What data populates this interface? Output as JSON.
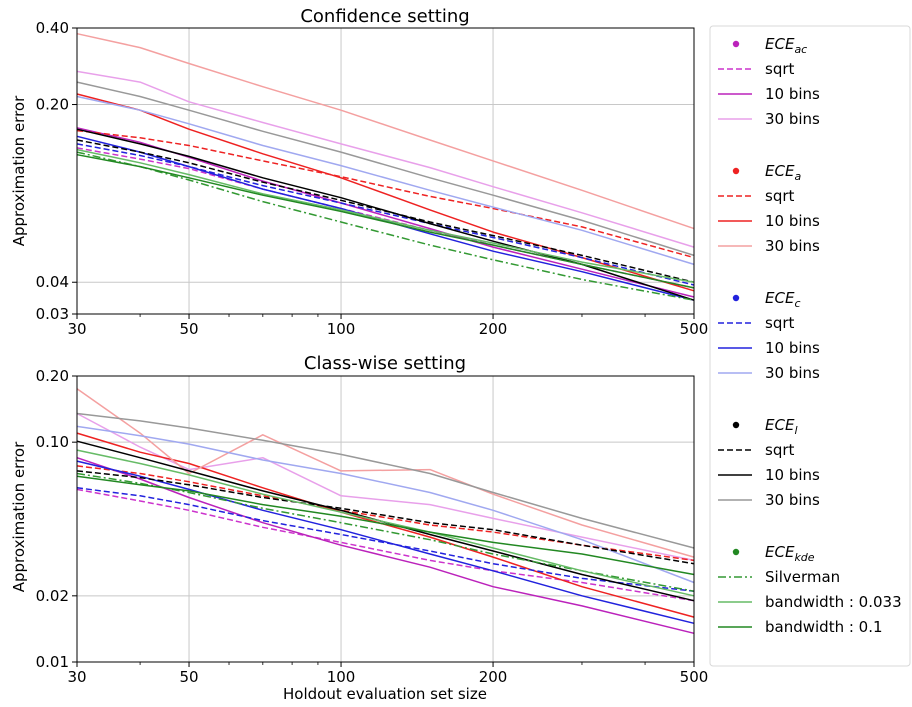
{
  "chart_data": [
    {
      "type": "line",
      "title": "Confidence setting",
      "xlabel": "",
      "ylabel": "Approximation error",
      "xscale": "log",
      "yscale": "log",
      "xlim": [
        30,
        500
      ],
      "ylim": [
        0.03,
        0.4
      ],
      "xticks": [
        30,
        50,
        100,
        200,
        500
      ],
      "xtick_labels": [
        "30",
        "50",
        "100",
        "200",
        "500"
      ],
      "yticks": [
        0.03,
        0.04,
        0.2,
        0.4
      ],
      "ytick_labels": [
        "0.03",
        "0.04",
        "0.20",
        "0.40"
      ],
      "grid": true,
      "x": [
        30,
        40,
        50,
        70,
        100,
        150,
        200,
        300,
        500
      ],
      "series": [
        {
          "name": "ECE_ac sqrt",
          "color": "#cc33cc",
          "dash": "dashed",
          "values": [
            0.135,
            0.122,
            0.112,
            0.093,
            0.078,
            0.064,
            0.056,
            0.047,
            0.038
          ]
        },
        {
          "name": "ECE_ac 10 bins",
          "color": "#bb22bb",
          "dash": "solid",
          "values": [
            0.162,
            0.142,
            0.124,
            0.1,
            0.082,
            0.065,
            0.055,
            0.045,
            0.035
          ]
        },
        {
          "name": "ECE_ac 30 bins",
          "color": "#e8a0ea",
          "dash": "solid",
          "values": [
            0.27,
            0.245,
            0.205,
            0.17,
            0.14,
            0.113,
            0.095,
            0.075,
            0.055
          ]
        },
        {
          "name": "ECE_a sqrt",
          "color": "#ee2222",
          "dash": "dashed",
          "values": [
            0.158,
            0.148,
            0.138,
            0.12,
            0.104,
            0.087,
            0.078,
            0.066,
            0.05
          ]
        },
        {
          "name": "ECE_a 10 bins",
          "color": "#ee2222",
          "dash": "solid",
          "values": [
            0.22,
            0.19,
            0.16,
            0.128,
            0.103,
            0.077,
            0.063,
            0.05,
            0.037
          ]
        },
        {
          "name": "ECE_a 30 bins",
          "color": "#f4a0a0",
          "dash": "solid",
          "values": [
            0.38,
            0.335,
            0.29,
            0.235,
            0.19,
            0.145,
            0.12,
            0.092,
            0.065
          ]
        },
        {
          "name": "ECE_c sqrt",
          "color": "#2222dd",
          "dash": "dashed",
          "values": [
            0.14,
            0.126,
            0.114,
            0.096,
            0.082,
            0.068,
            0.06,
            0.05,
            0.039
          ]
        },
        {
          "name": "ECE_c 10 bins",
          "color": "#2222dd",
          "dash": "solid",
          "values": [
            0.15,
            0.13,
            0.114,
            0.093,
            0.078,
            0.062,
            0.053,
            0.044,
            0.034
          ]
        },
        {
          "name": "ECE_c 30 bins",
          "color": "#a0a8f0",
          "dash": "solid",
          "values": [
            0.215,
            0.19,
            0.168,
            0.138,
            0.115,
            0.092,
            0.079,
            0.064,
            0.047
          ]
        },
        {
          "name": "ECE_l sqrt",
          "color": "#000000",
          "dash": "dashed",
          "values": [
            0.145,
            0.13,
            0.118,
            0.099,
            0.084,
            0.069,
            0.061,
            0.051,
            0.04
          ]
        },
        {
          "name": "ECE_l 10 bins",
          "color": "#000000",
          "dash": "solid",
          "values": [
            0.16,
            0.14,
            0.125,
            0.103,
            0.086,
            0.068,
            0.058,
            0.047,
            0.034
          ]
        },
        {
          "name": "ECE_l 30 bins",
          "color": "#999999",
          "dash": "solid",
          "values": [
            0.245,
            0.215,
            0.19,
            0.157,
            0.13,
            0.103,
            0.088,
            0.07,
            0.051
          ]
        },
        {
          "name": "ECE_kde Silverman",
          "color": "#339933",
          "dash": "dashdot",
          "values": [
            0.13,
            0.114,
            0.101,
            0.083,
            0.069,
            0.056,
            0.049,
            0.041,
            0.034
          ]
        },
        {
          "name": "ECE_kde bandwidth : 0.033",
          "color": "#66bb66",
          "dash": "solid",
          "values": [
            0.133,
            0.118,
            0.106,
            0.089,
            0.077,
            0.064,
            0.057,
            0.048,
            0.04
          ]
        },
        {
          "name": "ECE_kde bandwidth : 0.1",
          "color": "#228822",
          "dash": "solid",
          "values": [
            0.127,
            0.114,
            0.103,
            0.088,
            0.076,
            0.063,
            0.056,
            0.047,
            0.038
          ]
        }
      ]
    },
    {
      "type": "line",
      "title": "Class-wise setting",
      "xlabel": "Holdout evaluation set size",
      "ylabel": "Approximation error",
      "xscale": "log",
      "yscale": "log",
      "xlim": [
        30,
        500
      ],
      "ylim": [
        0.01,
        0.2
      ],
      "xticks": [
        30,
        50,
        100,
        200,
        500
      ],
      "xtick_labels": [
        "30",
        "50",
        "100",
        "200",
        "500"
      ],
      "yticks": [
        0.01,
        0.02,
        0.1,
        0.2
      ],
      "ytick_labels": [
        "0.01",
        "0.02",
        "0.10",
        "0.20"
      ],
      "grid": true,
      "x": [
        30,
        40,
        50,
        70,
        100,
        150,
        200,
        300,
        500
      ],
      "series": [
        {
          "name": "ECE_ac sqrt",
          "color": "#cc33cc",
          "dash": "dashed",
          "values": [
            0.061,
            0.054,
            0.049,
            0.041,
            0.035,
            0.029,
            0.026,
            0.023,
            0.019
          ]
        },
        {
          "name": "ECE_ac 10 bins",
          "color": "#bb22bb",
          "dash": "solid",
          "values": [
            0.085,
            0.068,
            0.056,
            0.043,
            0.034,
            0.027,
            0.022,
            0.018,
            0.0135
          ]
        },
        {
          "name": "ECE_ac 30 bins",
          "color": "#e8a0ea",
          "dash": "solid",
          "values": [
            0.135,
            0.095,
            0.075,
            0.085,
            0.057,
            0.052,
            0.045,
            0.037,
            0.029
          ]
        },
        {
          "name": "ECE_a sqrt",
          "color": "#ee2222",
          "dash": "dashed",
          "values": [
            0.078,
            0.072,
            0.066,
            0.057,
            0.049,
            0.042,
            0.039,
            0.034,
            0.029
          ]
        },
        {
          "name": "ECE_a 10 bins",
          "color": "#ee2222",
          "dash": "solid",
          "values": [
            0.11,
            0.09,
            0.08,
            0.062,
            0.048,
            0.037,
            0.03,
            0.022,
            0.016
          ]
        },
        {
          "name": "ECE_a 30 bins",
          "color": "#f4a0a0",
          "dash": "solid",
          "values": [
            0.175,
            0.11,
            0.072,
            0.108,
            0.074,
            0.075,
            0.058,
            0.042,
            0.03
          ]
        },
        {
          "name": "ECE_c sqrt",
          "color": "#2222dd",
          "dash": "dashed",
          "values": [
            0.062,
            0.057,
            0.052,
            0.044,
            0.038,
            0.032,
            0.028,
            0.024,
            0.021
          ]
        },
        {
          "name": "ECE_c 10 bins",
          "color": "#2222dd",
          "dash": "solid",
          "values": [
            0.082,
            0.07,
            0.061,
            0.049,
            0.04,
            0.031,
            0.026,
            0.02,
            0.015
          ]
        },
        {
          "name": "ECE_c 30 bins",
          "color": "#a0a8f0",
          "dash": "solid",
          "values": [
            0.118,
            0.107,
            0.098,
            0.083,
            0.072,
            0.059,
            0.049,
            0.036,
            0.023
          ]
        },
        {
          "name": "ECE_l sqrt",
          "color": "#000000",
          "dash": "dashed",
          "values": [
            0.074,
            0.069,
            0.064,
            0.056,
            0.05,
            0.043,
            0.04,
            0.034,
            0.028
          ]
        },
        {
          "name": "ECE_l 10 bins",
          "color": "#000000",
          "dash": "solid",
          "values": [
            0.101,
            0.085,
            0.074,
            0.06,
            0.049,
            0.038,
            0.032,
            0.025,
            0.019
          ]
        },
        {
          "name": "ECE_l 30 bins",
          "color": "#999999",
          "dash": "solid",
          "values": [
            0.135,
            0.125,
            0.116,
            0.102,
            0.088,
            0.072,
            0.059,
            0.045,
            0.033
          ]
        },
        {
          "name": "ECE_kde Silverman",
          "color": "#339933",
          "dash": "dashdot",
          "values": [
            0.072,
            0.065,
            0.059,
            0.05,
            0.043,
            0.036,
            0.031,
            0.026,
            0.021
          ]
        },
        {
          "name": "ECE_kde bandwidth : 0.033",
          "color": "#66bb66",
          "dash": "solid",
          "values": [
            0.092,
            0.08,
            0.071,
            0.058,
            0.048,
            0.039,
            0.033,
            0.026,
            0.02
          ]
        },
        {
          "name": "ECE_kde bandwidth : 0.1",
          "color": "#228822",
          "dash": "solid",
          "values": [
            0.07,
            0.064,
            0.06,
            0.052,
            0.046,
            0.039,
            0.035,
            0.031,
            0.025
          ]
        }
      ]
    }
  ],
  "legend": {
    "placement": "right",
    "groups": [
      {
        "header": "ECE",
        "sub": "ac",
        "color": "#bb22bb",
        "items": [
          {
            "label": "sqrt",
            "color": "#cc33cc",
            "dash": "dashed"
          },
          {
            "label": "10 bins",
            "color": "#bb22bb",
            "dash": "solid"
          },
          {
            "label": "30 bins",
            "color": "#e8a0ea",
            "dash": "solid"
          }
        ]
      },
      {
        "header": "ECE",
        "sub": "a",
        "color": "#ee2222",
        "items": [
          {
            "label": "sqrt",
            "color": "#ee2222",
            "dash": "dashed"
          },
          {
            "label": "10 bins",
            "color": "#ee2222",
            "dash": "solid"
          },
          {
            "label": "30 bins",
            "color": "#f4a0a0",
            "dash": "solid"
          }
        ]
      },
      {
        "header": "ECE",
        "sub": "c",
        "color": "#2222dd",
        "items": [
          {
            "label": "sqrt",
            "color": "#2222dd",
            "dash": "dashed"
          },
          {
            "label": "10 bins",
            "color": "#2222dd",
            "dash": "solid"
          },
          {
            "label": "30 bins",
            "color": "#a0a8f0",
            "dash": "solid"
          }
        ]
      },
      {
        "header": "ECE",
        "sub": "l",
        "color": "#000000",
        "items": [
          {
            "label": "sqrt",
            "color": "#000000",
            "dash": "dashed"
          },
          {
            "label": "10 bins",
            "color": "#000000",
            "dash": "solid"
          },
          {
            "label": "30 bins",
            "color": "#999999",
            "dash": "solid"
          }
        ]
      },
      {
        "header": "ECE",
        "sub": "kde",
        "color": "#228822",
        "items": [
          {
            "label": "Silverman",
            "color": "#339933",
            "dash": "dashdot"
          },
          {
            "label": "bandwidth : 0.033",
            "color": "#66bb66",
            "dash": "solid"
          },
          {
            "label": "bandwidth : 0.1",
            "color": "#228822",
            "dash": "solid"
          }
        ]
      }
    ]
  }
}
